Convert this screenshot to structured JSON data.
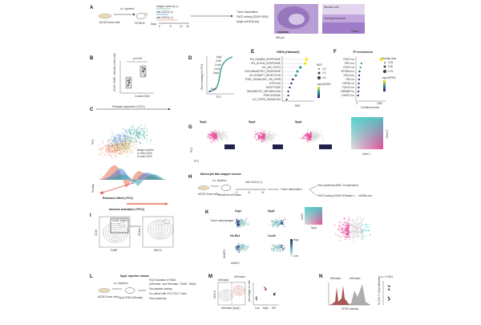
{
  "panels": {
    "A": {
      "letter": "A",
      "model": "MC38\nTumor cells",
      "injection": "s.c. injection",
      "mouse": "C57BL/6",
      "isotype": "isotype control (i.v.)",
      "anti_cd40_iv": "anti-CD40 (i.v.)",
      "anti_cd40_10": "anti-CD40 (i.v.)",
      "days_label": "Days",
      "days": [
        "0",
        "8",
        "14",
        "15"
      ],
      "steps": [
        "Tumor dissociation",
        "FACS sorting (CD45⁺F4/80)",
        "single-cell RNA-seq"
      ],
      "scale": "500 μm",
      "necrotic": "Necrotic core",
      "leukocyte": "Leukocyte invasion",
      "tumor": "Tumor"
    },
    "B": {
      "letter": "B",
      "pvalue": "p<0.001",
      "ylabel": "CD45⁺F4/80⁺ (fraction of all cells)",
      "xlabel": "1x anti-CD40"
    },
    "D": {
      "letter": "D",
      "genes": [
        "Arg1",
        "Ccl8",
        "Cxcl9",
        "Cd40",
        "Stat1"
      ],
      "xlabel": "PC1",
      "ylabel": "Gene loadings for PC1",
      "low": "Spp1"
    },
    "E": {
      "letter": "E",
      "title": "GSEA (Hallmark)",
      "terms": [
        "IFN_GAMMA_RESPONSE",
        "IFN_ALPHA_RESPONSE",
        "IL6_JAK_STAT3",
        "INFLAMMATORY_RESPONSE",
        "ALLOGRAFT_REJECTION",
        "TNFA_SIGNALING_VIA_NFKB",
        "HYPOXIA",
        "APOPTOSIS",
        "XENOBIOTIC_METABOLISM",
        "PEROXISOME",
        "IL2_STAT5_SIGNALING"
      ],
      "xlabel": "NES",
      "legend_title": "NES",
      "legend_values": [
        "1.5",
        "2.0",
        "2.5"
      ],
      "fdr_label": "-log10(FDR)"
    },
    "F": {
      "letter": "F",
      "title": "TF enrichment",
      "terms": [
        "STAT1 hu",
        "IRF1 mu",
        "STAT1 hu",
        "NFKB1A hu",
        "RELA mu",
        "REL hu",
        "NFKB1 hu",
        "FOXO1 hu",
        "CREBBP hu",
        "TWIST2 hu"
      ],
      "xlabel": "Combined score",
      "legend_title": "Overlap ratio",
      "legend_values": [
        "0.25",
        "0.50",
        "0.75"
      ],
      "fdr_label": "-log10(FDR)",
      "ticks": [
        "0",
        "1000"
      ]
    },
    "C": {
      "letter": "C",
      "title": "Principal component 1 (PC1)",
      "legend": [
        "isotype control",
        "1x anti-CD40",
        "2x anti-CD40"
      ],
      "rebound": "Rebound effect (-PC1)",
      "activation": "Immune activation (+PC1)",
      "density": "Density",
      "pc2": "PC2"
    },
    "G": {
      "letter": "G",
      "label": "PC1",
      "pairs": [
        [
          "Spp1",
          "Cxcl9"
        ],
        [
          "Spp1",
          "Cd40"
        ],
        [
          "Spp1",
          "H2-Eb1"
        ]
      ],
      "gene1": "Gene 1",
      "gene2": "Gene 2"
    },
    "H": {
      "letter": "H",
      "title": "Monocyte fate mapper mouse",
      "model": "MC38\nTumor cells",
      "injection": "s.c. injection",
      "mouse": "Ms4a3Cre-tdTomato",
      "treatment": "anti-CD40 (i.v.)",
      "days": [
        "0",
        "8",
        "14"
      ],
      "steps": [
        "Tumor dissociation",
        "Flow cytometry (MHC-II expression)",
        "FACS sorting (CD45⁺tdTomato⁺) → scRNA-seq"
      ]
    },
    "I": {
      "letter": "I",
      "gate1": "CD45⁺F4/80⁺",
      "x1": "F4/80",
      "y1": "CD45",
      "x2": "MHC-II",
      "y2": "CD11b"
    },
    "K": {
      "letter": "K",
      "genes": [
        "Arg1",
        "Spp1",
        "H2-Eb1",
        "Cxcl9"
      ],
      "annot": "Tumor\nmacrophages",
      "umap": "UMAP1",
      "umap2": "UMAP2",
      "colorbar_low": "Low",
      "colorbar_high": "High",
      "scale_x": "Spp1",
      "scale_y": "Cd40"
    },
    "L": {
      "letter": "L",
      "title": "Spp1 reporter mouse",
      "model": "MC38\nTumor cells",
      "injection": "s.c. injection",
      "mouse": "Spp1-IRES-tdTomato",
      "steps": [
        "FACS isolation of TAMs",
        "(tdTomato⁺ and tdTomato⁻ F4/80⁺ TAMs)",
        "Ova peptide loading",
        "Co-culture with OT-II CD4 T cells",
        "Flow cytometry"
      ]
    },
    "M": {
      "letter": "M",
      "neg": "tdTomato⁻",
      "pos": "tdTomato⁺",
      "x": "tdTomato (Spp1)",
      "y": "MHC-II",
      "bins": [
        "Low",
        "High",
        "Diff"
      ],
      "ylabel": "percentage of cells"
    },
    "N": {
      "letter": "N",
      "neg": "tdTomato⁻",
      "pos": "tdTomato⁺",
      "x": "CFSE intensity",
      "y": "% CD4 T-cell proliferation",
      "pvalue": "p < 0.0001"
    }
  },
  "chart_data": [
    {
      "type": "scatter",
      "title": "GSEA (Hallmark)",
      "categories": [
        "IFN_GAMMA_RESPONSE",
        "IFN_ALPHA_RESPONSE",
        "IL6_JAK_STAT3",
        "INFLAMMATORY_RESPONSE",
        "ALLOGRAFT_REJECTION",
        "TNFA_SIGNALING_VIA_NFKB",
        "HYPOXIA",
        "APOPTOSIS",
        "XENOBIOTIC_METABOLISM",
        "PEROXISOME",
        "IL2_STAT5_SIGNALING"
      ],
      "values": [
        2.6,
        2.5,
        2.2,
        2.0,
        1.9,
        1.7,
        1.6,
        1.5,
        1.4,
        1.4,
        1.3
      ],
      "xlabel": "NES"
    },
    {
      "type": "scatter",
      "title": "TF enrichment",
      "categories": [
        "STAT1 hu",
        "IRF1 mu",
        "STAT1 hu",
        "NFKB1A hu",
        "RELA mu",
        "REL hu",
        "NFKB1 hu",
        "FOXO1 hu",
        "CREBBP hu",
        "TWIST2 hu"
      ],
      "values": [
        1400,
        300,
        250,
        200,
        180,
        170,
        160,
        150,
        140,
        120
      ],
      "xlabel": "Combined score"
    }
  ]
}
